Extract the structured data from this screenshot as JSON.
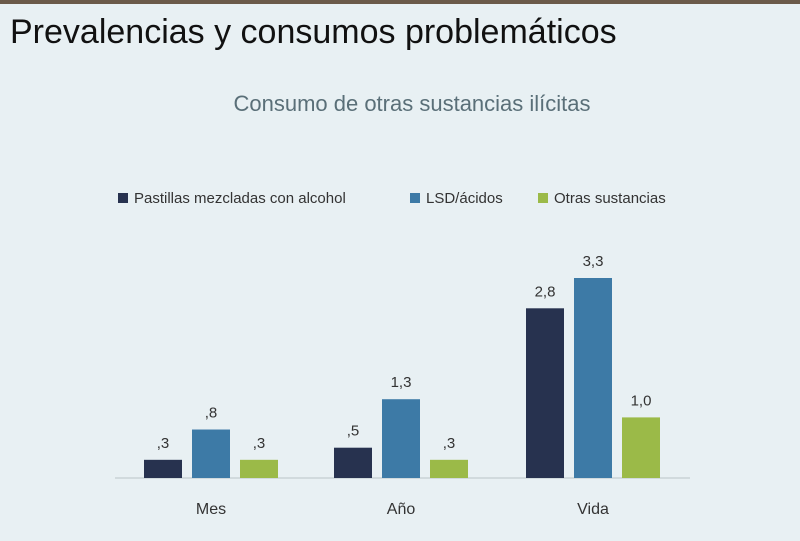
{
  "slide": {
    "title": "Prevalencias y consumos problemáticos"
  },
  "chart_data": {
    "type": "bar",
    "title": "Consumo de otras sustancias ilícitas",
    "categories": [
      "Mes",
      "Año",
      "Vida"
    ],
    "series": [
      {
        "name": "Pastillas mezcladas con alcohol",
        "color": "#27324f",
        "values": [
          0.3,
          0.5,
          2.8
        ],
        "value_labels": [
          ",3",
          ",5",
          "2,8"
        ]
      },
      {
        "name": "LSD/ácidos",
        "color": "#3d7aa6",
        "values": [
          0.8,
          1.3,
          3.3
        ],
        "value_labels": [
          ",8",
          "1,3",
          "3,3"
        ]
      },
      {
        "name": "Otras sustancias",
        "color": "#9bba48",
        "values": [
          0.3,
          0.3,
          1.0
        ],
        "value_labels": [
          ",3",
          ",3",
          "1,0"
        ]
      }
    ],
    "legend": "top"
  }
}
